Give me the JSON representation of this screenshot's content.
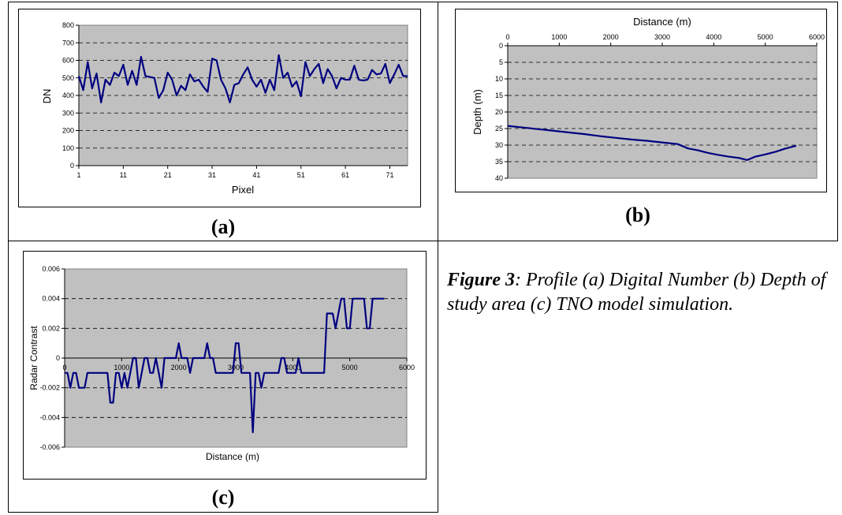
{
  "panels": [
    {
      "label": "(a)"
    },
    {
      "label": "(b)"
    },
    {
      "label": "(c)"
    }
  ],
  "caption": {
    "figure": "Figure 3",
    "text": ": Profile (a) Digital Number (b) Depth of study area (c) TNO model simulation."
  },
  "colors": {
    "plot_background": "#c0c0c0",
    "line": "#000080",
    "grid": "#000000"
  },
  "chart_data": [
    {
      "type": "line",
      "xlabel": "Pixel",
      "ylabel": "DN",
      "xlim": [
        1,
        75
      ],
      "ylim": [
        0,
        800
      ],
      "x_ticks": [
        1,
        11,
        21,
        31,
        41,
        51,
        61,
        71
      ],
      "y_ticks": [
        0,
        100,
        200,
        300,
        400,
        500,
        600,
        700,
        800
      ],
      "grid": "horizontal dashed",
      "series": [
        {
          "x": [
            1,
            2,
            3,
            4,
            5,
            6,
            7,
            8,
            9,
            10,
            11,
            12,
            13,
            14,
            15,
            16,
            17,
            18,
            19,
            20,
            21,
            22,
            23,
            24,
            25,
            26,
            27,
            28,
            29,
            30,
            31,
            32,
            33,
            34,
            35,
            36,
            37,
            38,
            39,
            40,
            41,
            42,
            43,
            44,
            45,
            46,
            47,
            48,
            49,
            50,
            51,
            52,
            53,
            54,
            55,
            56,
            57,
            58,
            59,
            60,
            61,
            62,
            63,
            64,
            65,
            66,
            67,
            68,
            69,
            70,
            71,
            72,
            73,
            74,
            75
          ],
          "values": [
            510,
            430,
            590,
            440,
            525,
            360,
            490,
            460,
            530,
            510,
            575,
            460,
            540,
            460,
            620,
            510,
            505,
            500,
            385,
            430,
            530,
            490,
            400,
            455,
            430,
            520,
            480,
            490,
            450,
            420,
            610,
            600,
            490,
            440,
            360,
            460,
            470,
            520,
            560,
            490,
            450,
            490,
            415,
            490,
            430,
            630,
            500,
            530,
            450,
            480,
            395,
            590,
            510,
            550,
            580,
            470,
            550,
            510,
            440,
            500,
            490,
            490,
            570,
            490,
            485,
            490,
            545,
            520,
            525,
            580,
            470,
            520,
            575,
            510,
            510
          ]
        }
      ]
    },
    {
      "type": "line",
      "xlabel": "Distance (m)",
      "ylabel": "Depth (m)",
      "xlim": [
        0,
        6000
      ],
      "ylim": [
        40,
        0
      ],
      "x_ticks": [
        0,
        1000,
        2000,
        3000,
        4000,
        5000,
        6000
      ],
      "y_ticks": [
        0,
        5,
        10,
        15,
        20,
        25,
        30,
        35,
        40
      ],
      "grid": "horizontal dashed",
      "series": [
        {
          "x": [
            0,
            300,
            600,
            900,
            1200,
            1500,
            1800,
            2100,
            2400,
            2700,
            3000,
            3300,
            3500,
            3700,
            3900,
            4100,
            4300,
            4500,
            4650,
            4800,
            5000,
            5200,
            5400,
            5600
          ],
          "values": [
            24.2,
            24.7,
            25.2,
            25.7,
            26.2,
            26.7,
            27.3,
            27.8,
            28.3,
            28.7,
            29.2,
            29.7,
            31.0,
            31.6,
            32.4,
            33.0,
            33.5,
            33.9,
            34.5,
            33.5,
            32.8,
            32.0,
            31.0,
            30.2
          ]
        }
      ]
    },
    {
      "type": "line",
      "xlabel": "Distance (m)",
      "ylabel": "Radar Contrast",
      "xlim": [
        0,
        6000
      ],
      "ylim": [
        -0.006,
        0.006
      ],
      "x_ticks": [
        0,
        1000,
        2000,
        3000,
        4000,
        5000,
        6000
      ],
      "y_ticks": [
        -0.006,
        -0.004,
        -0.002,
        0,
        0.002,
        0.004,
        0.006
      ],
      "y_tick_labels": [
        "-0.006",
        "-0.004",
        "-0.002",
        "0",
        "0.002",
        "0.004",
        "0.006"
      ],
      "grid": "horizontal dashed",
      "series": [
        {
          "x": [
            0,
            50,
            100,
            150,
            200,
            250,
            300,
            350,
            400,
            450,
            500,
            550,
            600,
            650,
            700,
            750,
            800,
            850,
            900,
            950,
            1000,
            1050,
            1100,
            1150,
            1200,
            1250,
            1300,
            1350,
            1400,
            1450,
            1500,
            1550,
            1600,
            1650,
            1700,
            1750,
            1800,
            1850,
            1900,
            1950,
            2000,
            2050,
            2100,
            2150,
            2200,
            2250,
            2300,
            2350,
            2400,
            2450,
            2500,
            2550,
            2600,
            2650,
            2700,
            2750,
            2800,
            2850,
            2900,
            2950,
            3000,
            3050,
            3100,
            3150,
            3200,
            3250,
            3300,
            3350,
            3400,
            3450,
            3500,
            3550,
            3600,
            3650,
            3700,
            3750,
            3800,
            3850,
            3900,
            3950,
            4000,
            4050,
            4100,
            4150,
            4200,
            4250,
            4300,
            4350,
            4400,
            4450,
            4500,
            4550,
            4600,
            4650,
            4700,
            4750,
            4800,
            4850,
            4900,
            4950,
            5000,
            5050,
            5100,
            5150,
            5200,
            5250,
            5300,
            5350,
            5400,
            5450,
            5500,
            5550,
            5600
          ],
          "values": [
            -0.001,
            -0.001,
            -0.002,
            -0.001,
            -0.001,
            -0.002,
            -0.002,
            -0.002,
            -0.001,
            -0.001,
            -0.001,
            -0.001,
            -0.001,
            -0.001,
            -0.001,
            -0.001,
            -0.003,
            -0.003,
            -0.001,
            -0.001,
            -0.002,
            -0.001,
            -0.002,
            -0.001,
            0,
            0,
            -0.002,
            -0.001,
            0,
            0,
            -0.001,
            -0.001,
            0,
            -0.001,
            -0.002,
            0,
            0,
            0,
            0,
            0,
            0.001,
            0,
            0,
            0,
            -0.001,
            0,
            0,
            0,
            0,
            0,
            0.001,
            0,
            0,
            -0.001,
            -0.001,
            -0.001,
            -0.001,
            -0.001,
            -0.001,
            -0.001,
            0.001,
            0.001,
            -0.001,
            -0.001,
            -0.001,
            -0.001,
            -0.005,
            -0.001,
            -0.001,
            -0.002,
            -0.001,
            -0.001,
            -0.001,
            -0.001,
            -0.001,
            -0.001,
            0,
            0,
            -0.001,
            -0.001,
            -0.001,
            -0.001,
            0,
            -0.001,
            -0.001,
            -0.001,
            -0.001,
            -0.001,
            -0.001,
            -0.001,
            -0.001,
            -0.001,
            0.003,
            0.003,
            0.003,
            0.002,
            0.003,
            0.004,
            0.004,
            0.002,
            0.002,
            0.004,
            0.004,
            0.004,
            0.004,
            0.004,
            0.002,
            0.002,
            0.004,
            0.004,
            0.004,
            0.004,
            0.004
          ]
        }
      ]
    }
  ]
}
